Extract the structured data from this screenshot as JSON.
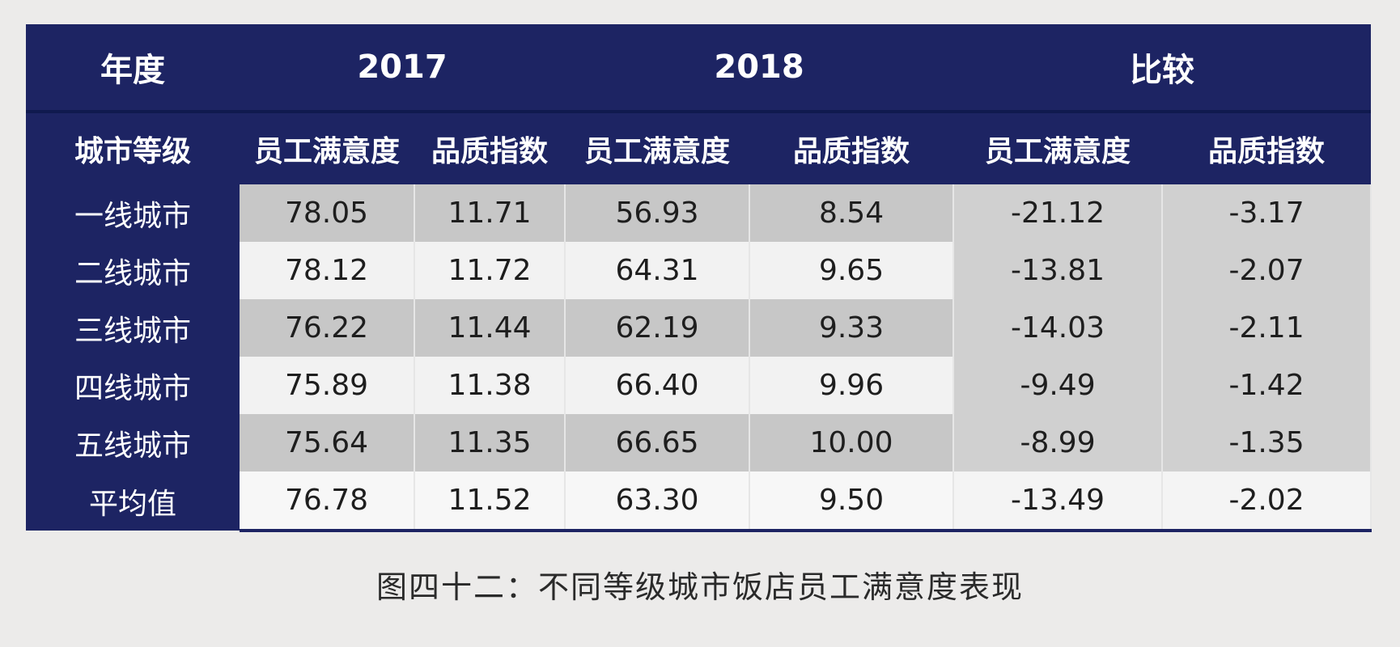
{
  "table": {
    "header_year_label": "年度",
    "header_group_2017": "2017",
    "header_group_2018": "2018",
    "header_group_compare": "比较",
    "header_row_label": "城市等级",
    "col_satisfaction": "员工满意度",
    "col_quality": "品质指数",
    "rows": [
      {
        "city": "一线城市",
        "s2017": "78.05",
        "q2017": "11.71",
        "s2018": "56.93",
        "q2018": "8.54",
        "ds": "-21.12",
        "dq": "-3.17"
      },
      {
        "city": "二线城市",
        "s2017": "78.12",
        "q2017": "11.72",
        "s2018": "64.31",
        "q2018": "9.65",
        "ds": "-13.81",
        "dq": "-2.07"
      },
      {
        "city": "三线城市",
        "s2017": "76.22",
        "q2017": "11.44",
        "s2018": "62.19",
        "q2018": "9.33",
        "ds": "-14.03",
        "dq": "-2.11"
      },
      {
        "city": "四线城市",
        "s2017": "75.89",
        "q2017": "11.38",
        "s2018": "66.40",
        "q2018": "9.96",
        "ds": "-9.49",
        "dq": "-1.42"
      },
      {
        "city": "五线城市",
        "s2017": "75.64",
        "q2017": "11.35",
        "s2018": "66.65",
        "q2018": "10.00",
        "ds": "-8.99",
        "dq": "-1.35"
      },
      {
        "city": "平均值",
        "s2017": "76.78",
        "q2017": "11.52",
        "s2018": "63.30",
        "q2018": "9.50",
        "ds": "-13.49",
        "dq": "-2.02"
      }
    ]
  },
  "caption": "图四十二：不同等级城市饭店员工满意度表现",
  "colors": {
    "header_bg": "#1d2463",
    "header_text": "#ffffff",
    "row_shade": "#c7c7c7",
    "row_light": "#f2f2f2"
  }
}
